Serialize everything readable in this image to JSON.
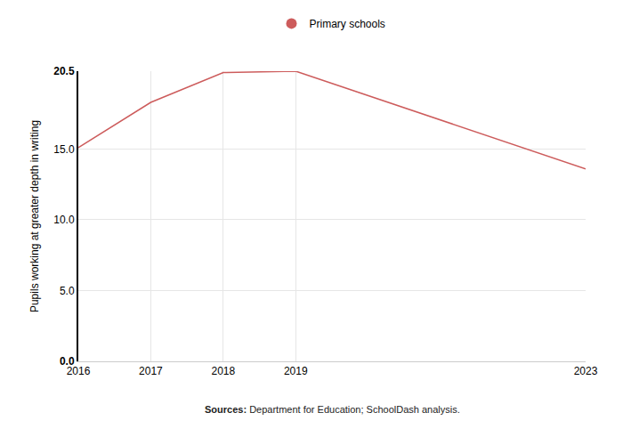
{
  "chart_data": {
    "type": "line",
    "y_label": "Pupils working at greater depth in writing",
    "x": [
      2016,
      2017,
      2018,
      2019,
      2023
    ],
    "series": [
      {
        "name": "Primary schools",
        "color": "#cd5c5c",
        "values": [
          15.1,
          18.3,
          20.4,
          20.5,
          13.6
        ]
      }
    ],
    "xlim": [
      2016,
      2023
    ],
    "xticks": [
      2016,
      2017,
      2018,
      2019,
      2023
    ],
    "ylim": [
      0,
      20.5
    ],
    "yticks": [
      {
        "value": 0,
        "label": "0.0"
      },
      {
        "value": 5,
        "label": "5.0"
      },
      {
        "value": 10,
        "label": "10.0"
      },
      {
        "value": 15,
        "label": "15.0"
      },
      20.5
    ],
    "grid": true,
    "legend": "top",
    "note": {
      "label": "Sources:",
      "text": "Department for Education; SchoolDash analysis."
    }
  }
}
